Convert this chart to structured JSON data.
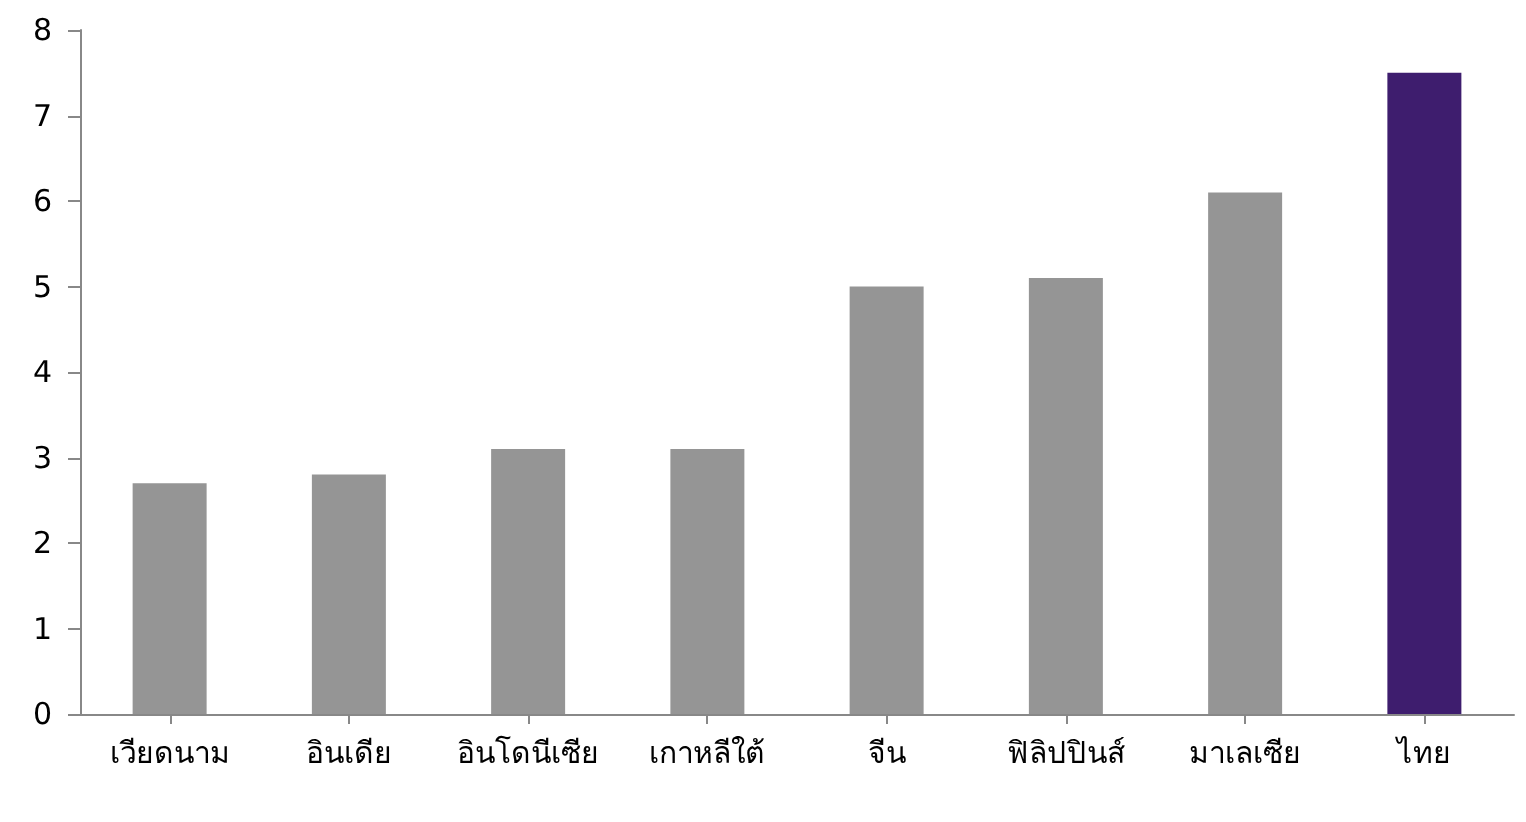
{
  "chart_data": {
    "type": "bar",
    "categories": [
      "เวียดนาม",
      "อินเดีย",
      "อินโดนีเซีย",
      "เกาหลีใต้",
      "จีน",
      "ฟิลิปปินส์",
      "มาเลเซีย",
      "ไทย"
    ],
    "values": [
      2.7,
      2.8,
      3.1,
      3.1,
      5.0,
      5.1,
      6.1,
      7.5
    ],
    "colors": [
      "#959595",
      "#959595",
      "#959595",
      "#959595",
      "#959595",
      "#959595",
      "#959595",
      "#3e1d6e"
    ],
    "ylim": [
      0,
      8
    ],
    "yticks": [
      0,
      1,
      2,
      3,
      4,
      5,
      6,
      7,
      8
    ],
    "grid": false
  }
}
